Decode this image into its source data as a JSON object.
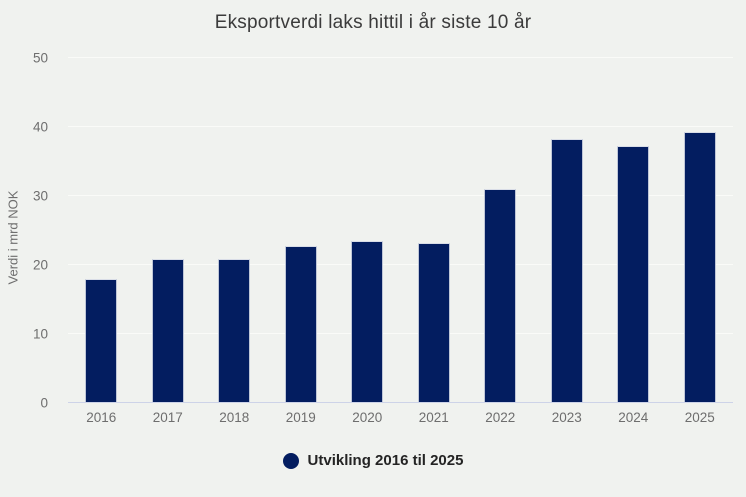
{
  "chart_data": {
    "type": "bar",
    "title": "Eksportverdi laks hittil i år siste 10 år",
    "ylabel": "Verdi i mrd NOK",
    "xlabel": "",
    "categories": [
      "2016",
      "2017",
      "2018",
      "2019",
      "2020",
      "2021",
      "2022",
      "2023",
      "2024",
      "2025"
    ],
    "values": [
      18.0,
      20.8,
      20.8,
      22.8,
      23.5,
      23.2,
      31.0,
      38.2,
      37.3,
      39.3
    ],
    "ylim": [
      0,
      50
    ],
    "yticks": [
      0,
      10,
      20,
      30,
      40,
      50
    ],
    "grid": true,
    "legend": {
      "label": "Utvikling 2016 til 2025",
      "position": "bottom",
      "marker": "circle"
    },
    "colors": {
      "bar": "#031d60",
      "background": "#f0f2ef",
      "gridline": "#fafbf8",
      "axis_line": "#cdd3e8",
      "tick_label": "#6e6e6e",
      "title": "#3b3b3b",
      "legend_text": "#242424"
    }
  }
}
